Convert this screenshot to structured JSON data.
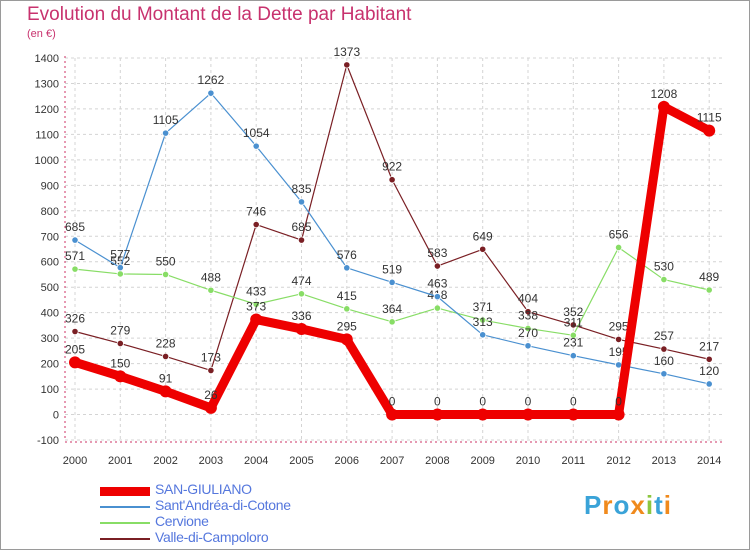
{
  "title": "Evolution du Montant de la Dette par Habitant",
  "unit": "(en €)",
  "logo": {
    "letters": [
      {
        "ch": "P",
        "color": "#3aa3d8"
      },
      {
        "ch": "r",
        "color": "#f08a1c"
      },
      {
        "ch": "o",
        "color": "#3aa3d8"
      },
      {
        "ch": "x",
        "color": "#f08a1c"
      },
      {
        "ch": "i",
        "color": "#8cc63f"
      },
      {
        "ch": "t",
        "color": "#3aa3d8"
      },
      {
        "ch": "i",
        "color": "#f08a1c"
      }
    ]
  },
  "chart_data": {
    "type": "line",
    "title": "Evolution du Montant de la Dette par Habitant",
    "ylabel": "(en €)",
    "x": [
      "2000",
      "2001",
      "2002",
      "2003",
      "2004",
      "2005",
      "2006",
      "2007",
      "2008",
      "2009",
      "2010",
      "2011",
      "2012",
      "2013",
      "2014"
    ],
    "ylim": [
      -100,
      1400
    ],
    "yticks": [
      -100,
      0,
      100,
      200,
      300,
      400,
      500,
      600,
      700,
      800,
      900,
      1000,
      1100,
      1200,
      1300,
      1400
    ],
    "grid": true,
    "legend": "bottom-left",
    "series": [
      {
        "name": "Valle-di-Campoloro",
        "color": "#7a1f24",
        "values": [
          326,
          279,
          228,
          173,
          746,
          685,
          1373,
          922,
          583,
          649,
          404,
          352,
          295,
          257,
          217
        ]
      },
      {
        "name": "Cervione",
        "color": "#88dd66",
        "values": [
          571,
          552,
          550,
          488,
          433,
          474,
          415,
          364,
          418,
          371,
          338,
          311,
          656,
          530,
          489
        ]
      },
      {
        "name": "Sant'Andréa-di-Cotone",
        "color": "#4a90d0",
        "values": [
          685,
          577,
          1105,
          1262,
          1054,
          835,
          576,
          519,
          463,
          313,
          270,
          231,
          195,
          160,
          120
        ]
      },
      {
        "name": "SAN-GIULIANO",
        "color": "#ee0000",
        "values": [
          205,
          150,
          91,
          26,
          373,
          336,
          295,
          0,
          0,
          0,
          0,
          0,
          0,
          1208,
          1115
        ]
      }
    ]
  }
}
